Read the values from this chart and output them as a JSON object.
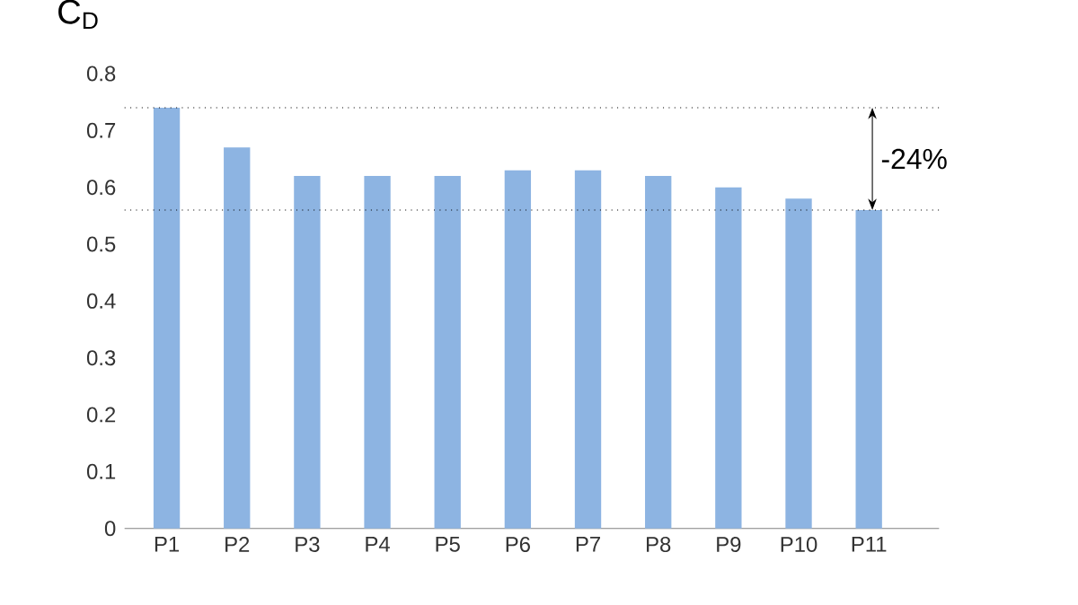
{
  "chart_data": {
    "type": "bar",
    "ylabel": "C$_{D}$",
    "categories": [
      "P1",
      "P2",
      "P3",
      "P4",
      "P5",
      "P6",
      "P7",
      "P8",
      "P9",
      "P10",
      "P11"
    ],
    "values": [
      0.74,
      0.67,
      0.62,
      0.62,
      0.62,
      0.63,
      0.63,
      0.62,
      0.6,
      0.58,
      0.56
    ],
    "color": "#8db4e2",
    "ylim": [
      0,
      0.8
    ],
    "yticks": [
      0,
      0.1,
      0.2,
      0.3,
      0.4,
      0.5,
      0.6,
      0.7,
      0.8
    ],
    "grid": false,
    "ref_lines": [
      {
        "axis": "y",
        "value": 0.74,
        "line_style": "dotted",
        "color": "#000000"
      },
      {
        "axis": "y",
        "value": 0.56,
        "line_style": "dotted",
        "color": "#000000"
      }
    ],
    "annotations": [
      "-24%"
    ]
  }
}
